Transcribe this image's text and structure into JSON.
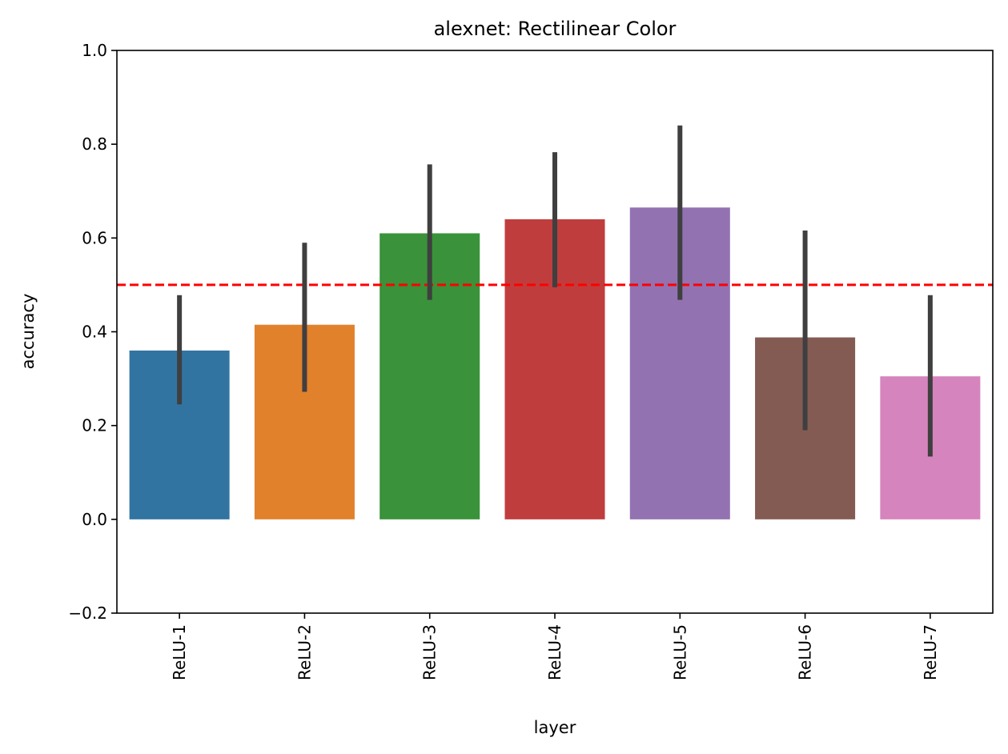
{
  "chart_data": {
    "type": "bar",
    "title": "alexnet: Rectilinear Color",
    "xlabel": "layer",
    "ylabel": "accuracy",
    "categories": [
      "ReLU-1",
      "ReLU-2",
      "ReLU-3",
      "ReLU-4",
      "ReLU-5",
      "ReLU-6",
      "ReLU-7"
    ],
    "values": [
      0.36,
      0.415,
      0.61,
      0.64,
      0.665,
      0.388,
      0.305
    ],
    "error_low": [
      0.245,
      0.272,
      0.468,
      0.495,
      0.468,
      0.19,
      0.134
    ],
    "error_high": [
      0.478,
      0.59,
      0.757,
      0.783,
      0.84,
      0.616,
      0.478
    ],
    "colors": [
      "#3274a1",
      "#e1812c",
      "#3a923a",
      "#c03d3e",
      "#9372b2",
      "#845b53",
      "#d684bd"
    ],
    "error_color": "#3f3f3f",
    "reference_line": {
      "y": 0.5,
      "color": "#ff0000",
      "style": "dashed"
    },
    "ylim": [
      -0.2,
      1.0
    ],
    "yticks": [
      "−0.2",
      "0.0",
      "0.2",
      "0.4",
      "0.6",
      "0.8",
      "1.0"
    ],
    "ytick_values": [
      -0.2,
      0.0,
      0.2,
      0.4,
      0.6,
      0.8,
      1.0
    ],
    "grid": false,
    "legend": "none"
  }
}
